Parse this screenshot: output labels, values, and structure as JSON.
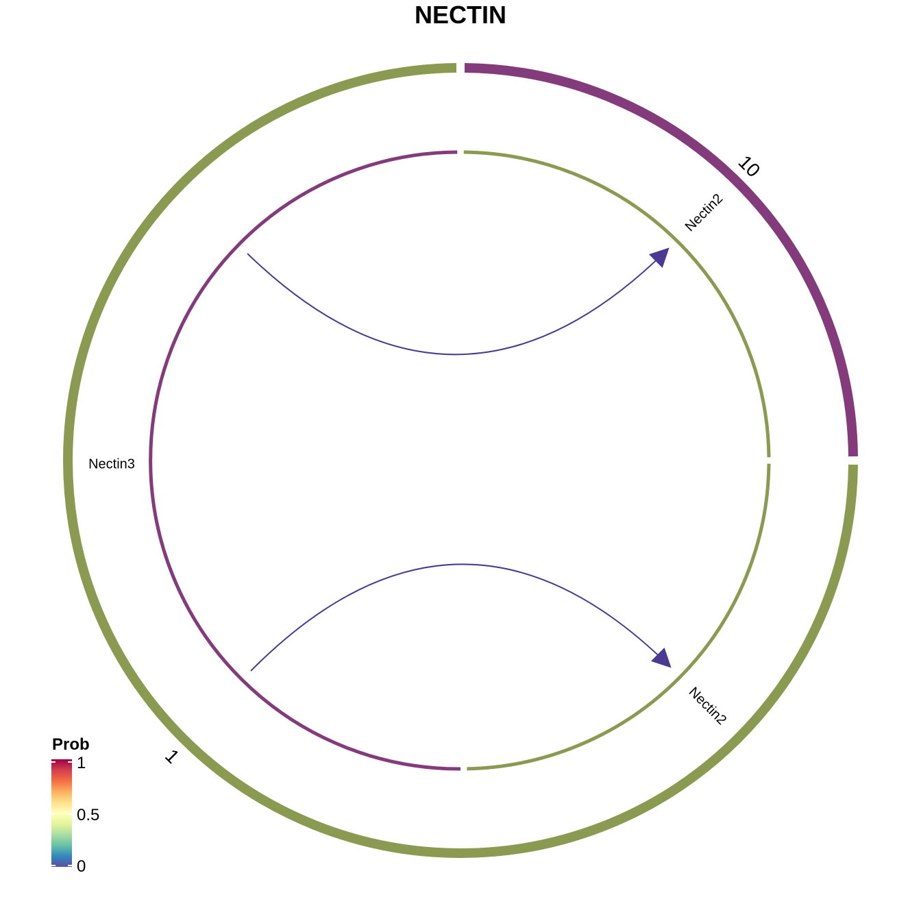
{
  "title": "NECTIN",
  "colors": {
    "group_1": "#8A9A50",
    "group_10": "#833B7B",
    "edge": "#4B3A91",
    "legend_gradient": [
      "#5E4FA2",
      "#3288BD",
      "#66C2A5",
      "#ABDDA4",
      "#E6F598",
      "#FFFFBF",
      "#FEE08B",
      "#FDAE61",
      "#F46D43",
      "#D53E4F",
      "#9E0142"
    ]
  },
  "groups": [
    {
      "id": "g10",
      "label": "10"
    },
    {
      "id": "g1",
      "label": "1"
    }
  ],
  "segments": [
    {
      "id": "nectin2_top",
      "label": "Nectin2",
      "group": "10",
      "role": "receptor"
    },
    {
      "id": "nectin2_bottom",
      "label": "Nectin2",
      "group": "1",
      "role": "receptor"
    },
    {
      "id": "nectin3",
      "label": "Nectin3",
      "group": "1",
      "role": "ligand"
    }
  ],
  "links": [
    {
      "from": "Nectin3",
      "to": "Nectin2",
      "source_group": "1",
      "target_group": "10"
    },
    {
      "from": "Nectin3",
      "to": "Nectin2",
      "source_group": "1",
      "target_group": "1"
    }
  ],
  "legend": {
    "title": "Prob",
    "ticks": [
      {
        "label": "1",
        "value": 1
      },
      {
        "label": "0.5",
        "value": 0.5
      },
      {
        "label": "0",
        "value": 0
      }
    ]
  }
}
